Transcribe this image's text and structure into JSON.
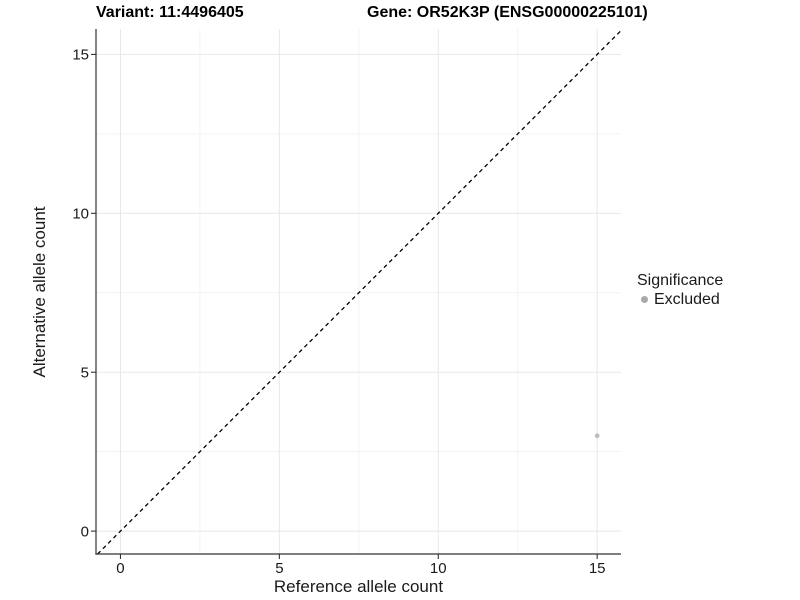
{
  "chart_data": {
    "type": "scatter",
    "titles": {
      "variant": "Variant: 11:4496405",
      "gene": "Gene: OR52K3P (ENSG00000225101)"
    },
    "xlabel": "Reference allele count",
    "ylabel": "Alternative allele count",
    "x_ticks": [
      0,
      5,
      10,
      15
    ],
    "y_ticks": [
      0,
      5,
      10,
      15
    ],
    "x_minor": [
      2.5,
      7.5,
      12.5
    ],
    "y_minor": [
      2.5,
      7.5,
      12.5
    ],
    "xlim": [
      -0.77,
      15.75
    ],
    "ylim": [
      -0.72,
      15.8
    ],
    "grid": true,
    "abline": {
      "slope": 1,
      "intercept": 0,
      "style": "dashed",
      "color": "#000000"
    },
    "series": [
      {
        "name": "Excluded",
        "color": "#bdbdbd",
        "points": [
          {
            "x": 15,
            "y": 3
          }
        ]
      }
    ],
    "legend": {
      "title": "Significance",
      "position": "right",
      "entries": [
        {
          "label": "Excluded",
          "color": "#a9a9a9"
        }
      ]
    },
    "colors": {
      "grid_major": "#e8e8e8",
      "grid_minor": "#f3f3f3",
      "axis_line": "#333333",
      "tick_text": "#1a1a1a"
    }
  }
}
